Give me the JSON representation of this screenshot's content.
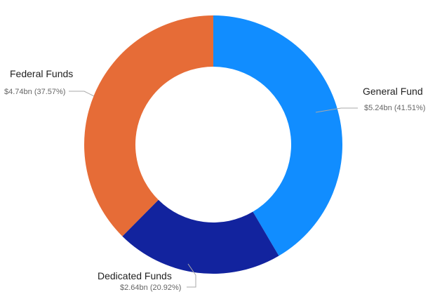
{
  "chart_data": {
    "type": "pie",
    "style": "donut",
    "title": "",
    "slices": [
      {
        "name": "General Fund",
        "value": 5.24,
        "display": "$5.24bn (41.51%)",
        "percent": 41.51,
        "color": "#118DFF"
      },
      {
        "name": "Dedicated Funds",
        "value": 2.64,
        "display": "$2.64bn (20.92%)",
        "percent": 20.92,
        "color": "#12239E"
      },
      {
        "name": "Federal Funds",
        "value": 4.74,
        "display": "$4.74bn (37.57%)",
        "percent": 37.57,
        "color": "#E66C37"
      }
    ],
    "legend": "none",
    "label_style": "outside with leader lines"
  }
}
